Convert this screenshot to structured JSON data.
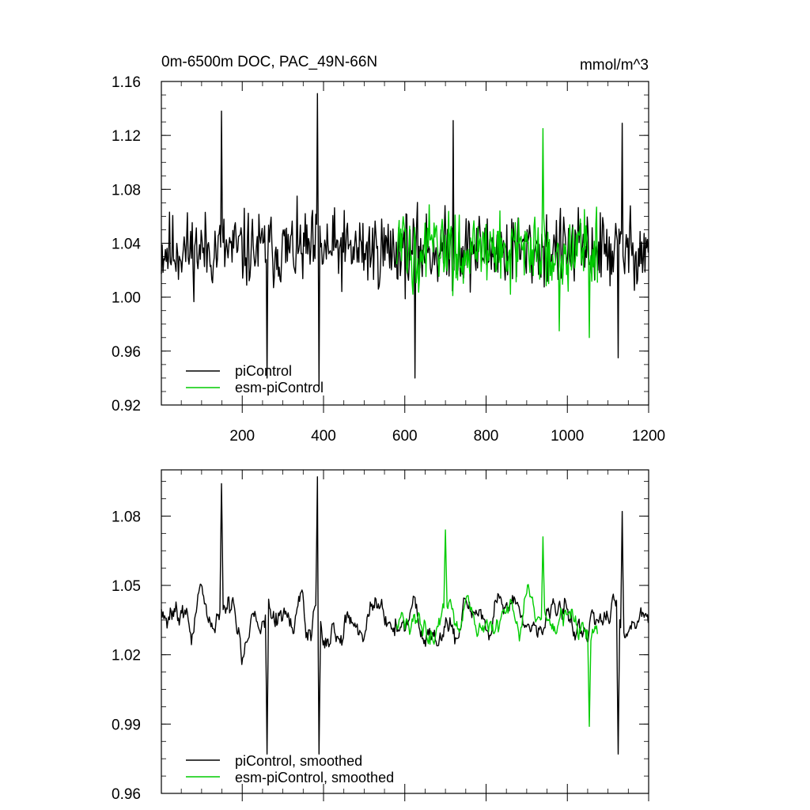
{
  "chart_data": [
    {
      "type": "line",
      "title": "0m-6500m DOC, PAC_49N-66N",
      "units": "mmol/m^3",
      "xlim": [
        1,
        1200
      ],
      "ylim": [
        0.92,
        1.16
      ],
      "xticks": [
        200,
        400,
        600,
        800,
        1000,
        1200
      ],
      "yticks": [
        0.92,
        0.96,
        1.0,
        1.04,
        1.08,
        1.12,
        1.16
      ],
      "ytick_labels": [
        "0.92",
        "0.96",
        "1.00",
        "1.04",
        "1.08",
        "1.12",
        "1.16"
      ],
      "legend_position": "bottom-left",
      "series": [
        {
          "name": "piControl",
          "color": "#000000",
          "x_start": 1,
          "x_end": 1200,
          "mean": 1.035,
          "amplitude": 0.03,
          "peaks": [
            [
              150,
              1.138
            ],
            [
              262,
              0.94
            ],
            [
              385,
              1.151
            ],
            [
              390,
              0.934
            ],
            [
              600,
              1.05
            ],
            [
              625,
              0.94
            ],
            [
              720,
              1.131
            ],
            [
              1125,
              0.955
            ],
            [
              1135,
              1.129
            ]
          ]
        },
        {
          "name": "esm-piControl",
          "color": "#00cc00",
          "x_start": 580,
          "x_end": 1075,
          "mean": 1.035,
          "amplitude": 0.03,
          "peaks": [
            [
              940,
              1.125
            ],
            [
              980,
              0.975
            ],
            [
              1055,
              0.97
            ]
          ]
        }
      ]
    },
    {
      "type": "line",
      "xlim": [
        1,
        1200
      ],
      "ylim": [
        0.96,
        1.1
      ],
      "xticks": [
        200,
        400,
        600,
        800,
        1000,
        1200
      ],
      "yticks": [
        0.96,
        0.99,
        1.02,
        1.05,
        1.08
      ],
      "ytick_labels": [
        "0.96",
        "0.99",
        "1.02",
        "1.05",
        "1.08"
      ],
      "legend_position": "bottom-left",
      "series": [
        {
          "name": "piControl, smoothed",
          "color": "#000000",
          "x_start": 1,
          "x_end": 1200,
          "mean": 1.035,
          "amplitude": 0.018,
          "peaks": [
            [
              150,
              1.094
            ],
            [
              262,
              0.977
            ],
            [
              385,
              1.097
            ],
            [
              390,
              0.977
            ],
            [
              1125,
              0.977
            ],
            [
              1135,
              1.082
            ]
          ]
        },
        {
          "name": "esm-piControl, smoothed",
          "color": "#00cc00",
          "x_start": 580,
          "x_end": 1075,
          "mean": 1.035,
          "amplitude": 0.016,
          "peaks": [
            [
              700,
              1.074
            ],
            [
              940,
              1.071
            ],
            [
              1055,
              0.989
            ]
          ]
        }
      ]
    }
  ]
}
